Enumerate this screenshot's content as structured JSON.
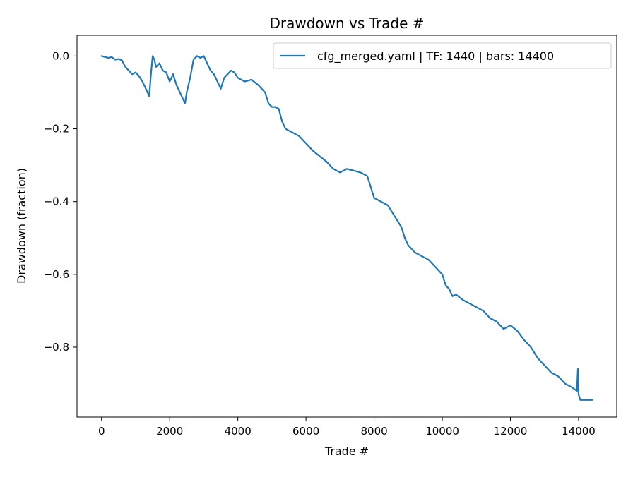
{
  "chart_data": {
    "type": "line",
    "title": "Drawdown vs Trade #",
    "xlabel": "Trade #",
    "ylabel": "Drawdown (fraction)",
    "xlim": [
      -720,
      15120
    ],
    "ylim": [
      -0.992,
      0.057
    ],
    "xticks": [
      0,
      2000,
      4000,
      6000,
      8000,
      10000,
      12000,
      14000
    ],
    "xtick_labels": [
      "0",
      "2000",
      "4000",
      "6000",
      "8000",
      "10000",
      "12000",
      "14000"
    ],
    "yticks": [
      0.0,
      -0.2,
      -0.4,
      -0.6,
      -0.8
    ],
    "ytick_labels": [
      "0.0",
      "−0.2",
      "−0.4",
      "−0.6",
      "−0.8"
    ],
    "grid": false,
    "legend_position": "upper right",
    "series": [
      {
        "name": "cfg_merged.yaml | TF: 1440 | bars: 14400",
        "color": "#1f77b4",
        "x": [
          0,
          200,
          300,
          400,
          500,
          600,
          700,
          800,
          900,
          1000,
          1100,
          1200,
          1300,
          1400,
          1450,
          1500,
          1550,
          1600,
          1700,
          1800,
          1900,
          2000,
          2100,
          2200,
          2300,
          2400,
          2450,
          2500,
          2600,
          2700,
          2800,
          2900,
          3000,
          3100,
          3200,
          3300,
          3400,
          3500,
          3600,
          3700,
          3800,
          3900,
          4000,
          4200,
          4400,
          4600,
          4800,
          4900,
          5000,
          5100,
          5200,
          5300,
          5400,
          5600,
          5800,
          6000,
          6200,
          6400,
          6600,
          6800,
          7000,
          7200,
          7400,
          7600,
          7800,
          7900,
          8000,
          8200,
          8400,
          8600,
          8800,
          8900,
          9000,
          9200,
          9400,
          9600,
          9800,
          10000,
          10100,
          10200,
          10300,
          10400,
          10600,
          10800,
          11000,
          11200,
          11400,
          11600,
          11800,
          12000,
          12200,
          12400,
          12600,
          12800,
          12900,
          13000,
          13200,
          13400,
          13600,
          13800,
          13950,
          13980,
          14000,
          14050,
          14100,
          14200,
          14300,
          14400
        ],
        "y": [
          0.0,
          -0.005,
          -0.003,
          -0.01,
          -0.008,
          -0.012,
          -0.03,
          -0.04,
          -0.05,
          -0.045,
          -0.055,
          -0.07,
          -0.09,
          -0.11,
          -0.05,
          0.0,
          -0.01,
          -0.03,
          -0.02,
          -0.04,
          -0.045,
          -0.07,
          -0.05,
          -0.08,
          -0.1,
          -0.12,
          -0.13,
          -0.1,
          -0.06,
          -0.01,
          0.0,
          -0.005,
          0.0,
          -0.02,
          -0.04,
          -0.05,
          -0.07,
          -0.09,
          -0.06,
          -0.05,
          -0.04,
          -0.045,
          -0.06,
          -0.07,
          -0.065,
          -0.08,
          -0.1,
          -0.13,
          -0.14,
          -0.14,
          -0.145,
          -0.18,
          -0.2,
          -0.21,
          -0.22,
          -0.24,
          -0.26,
          -0.275,
          -0.29,
          -0.31,
          -0.32,
          -0.31,
          -0.315,
          -0.32,
          -0.33,
          -0.36,
          -0.39,
          -0.4,
          -0.41,
          -0.44,
          -0.47,
          -0.5,
          -0.52,
          -0.54,
          -0.55,
          -0.56,
          -0.58,
          -0.6,
          -0.63,
          -0.64,
          -0.66,
          -0.655,
          -0.67,
          -0.68,
          -0.69,
          -0.7,
          -0.72,
          -0.73,
          -0.75,
          -0.74,
          -0.755,
          -0.78,
          -0.8,
          -0.83,
          -0.84,
          -0.85,
          -0.87,
          -0.88,
          -0.9,
          -0.91,
          -0.92,
          -0.86,
          -0.93,
          -0.945,
          -0.945,
          -0.945,
          -0.945,
          -0.945
        ]
      }
    ]
  }
}
